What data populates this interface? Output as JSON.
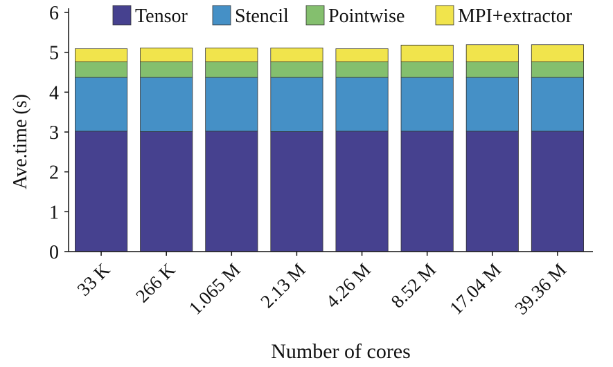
{
  "chart_data": {
    "type": "bar",
    "stacked": true,
    "title": "",
    "xlabel": "Number of cores",
    "ylabel": "Ave.time (s)",
    "ylim": [
      0,
      6
    ],
    "yticks": [
      0,
      1,
      2,
      3,
      4,
      5,
      6
    ],
    "grid": false,
    "legend_position": "top",
    "categories": [
      "33 K",
      "266 K",
      "1.065 M",
      "2.13 M",
      "4.26 M",
      "8.52 M",
      "17.04 M",
      "39.36 M"
    ],
    "series": [
      {
        "name": "Tensor",
        "color": "#46418f",
        "values": [
          3.02,
          3.01,
          3.02,
          3.01,
          3.02,
          3.02,
          3.02,
          3.02
        ]
      },
      {
        "name": "Stencil",
        "color": "#4590c6",
        "values": [
          1.35,
          1.36,
          1.35,
          1.36,
          1.35,
          1.35,
          1.35,
          1.35
        ]
      },
      {
        "name": "Pointwise",
        "color": "#84bf6e",
        "values": [
          0.39,
          0.39,
          0.39,
          0.39,
          0.39,
          0.39,
          0.39,
          0.39
        ]
      },
      {
        "name": "MPI+extractor",
        "color": "#f1e44c",
        "values": [
          0.33,
          0.35,
          0.35,
          0.35,
          0.33,
          0.42,
          0.43,
          0.43
        ]
      }
    ]
  }
}
